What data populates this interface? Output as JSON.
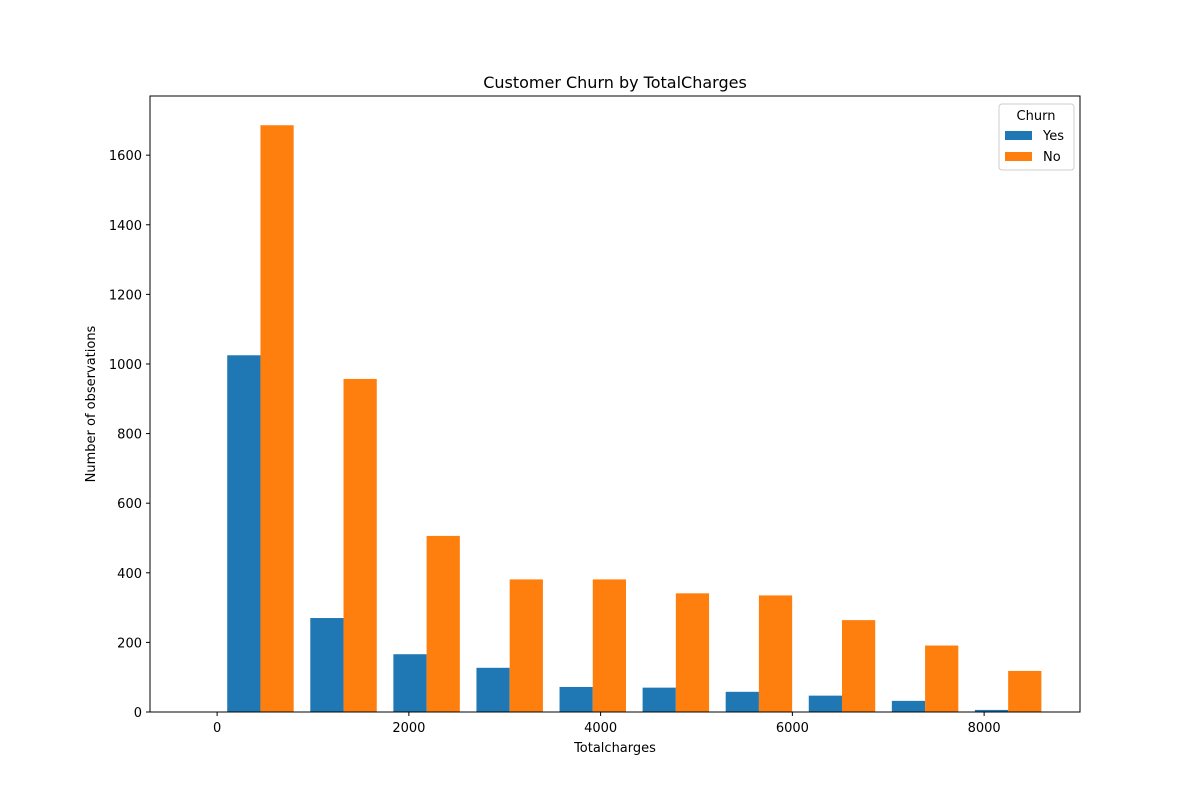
{
  "chart_data": {
    "type": "bar",
    "title": "Customer Churn by TotalCharges",
    "xlabel": "Totalcharges",
    "ylabel": "Number of observations",
    "xlim": [
      -700,
      9000
    ],
    "ylim": [
      0,
      1770
    ],
    "x_ticks": [
      0,
      2000,
      4000,
      6000,
      8000
    ],
    "y_ticks": [
      0,
      200,
      400,
      600,
      800,
      1000,
      1200,
      1400,
      1600
    ],
    "bin_edges": [
      18.8,
      885.3,
      1751.8,
      2618.3,
      3484.8,
      4351.3,
      5217.8,
      6084.3,
      6950.8,
      7817.3,
      8683.8
    ],
    "grid": false,
    "legend": {
      "title": "Churn",
      "placement": "top-right"
    },
    "series": [
      {
        "name": "Yes",
        "color": "#1f77b4",
        "values": [
          1025,
          270,
          166,
          127,
          72,
          70,
          58,
          47,
          32,
          6
        ]
      },
      {
        "name": "No",
        "color": "#ff7f0e",
        "values": [
          1686,
          957,
          506,
          381,
          381,
          341,
          335,
          264,
          191,
          118
        ]
      }
    ]
  }
}
